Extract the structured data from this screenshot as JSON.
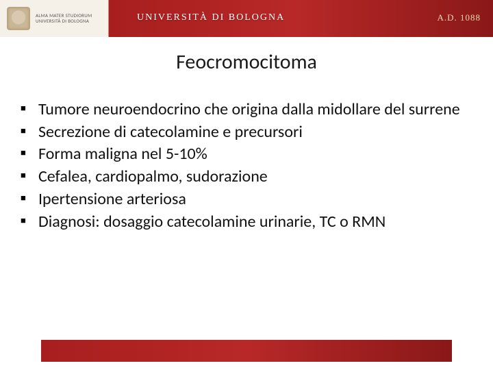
{
  "header": {
    "motto_line1": "ALMA MATER STUDIORUM",
    "motto_line2": "UNIVERSITÀ DI BOLOGNA",
    "university_name": "UNIVERSITÀ DI BOLOGNA",
    "year": "A.D. 1088",
    "banner_color_left": "#f5f0e8",
    "banner_color_right": "#a81e1e"
  },
  "slide": {
    "title": "Feocromocitoma",
    "bullets": [
      "Tumore neuroendocrino che origina dalla midollare del surrene",
      "Secrezione di catecolamine e precursori",
      "Forma maligna nel 5-10%",
      "Cefalea, cardiopalmo, sudorazione",
      "Ipertensione arteriosa",
      "Diagnosi: dosaggio catecolamine urinarie, TC o RMN"
    ]
  },
  "styling": {
    "title_fontsize": 30,
    "bullet_fontsize": 24,
    "text_color": "#111111",
    "background_color": "#ffffff",
    "footer_color": "#a81e1e"
  }
}
